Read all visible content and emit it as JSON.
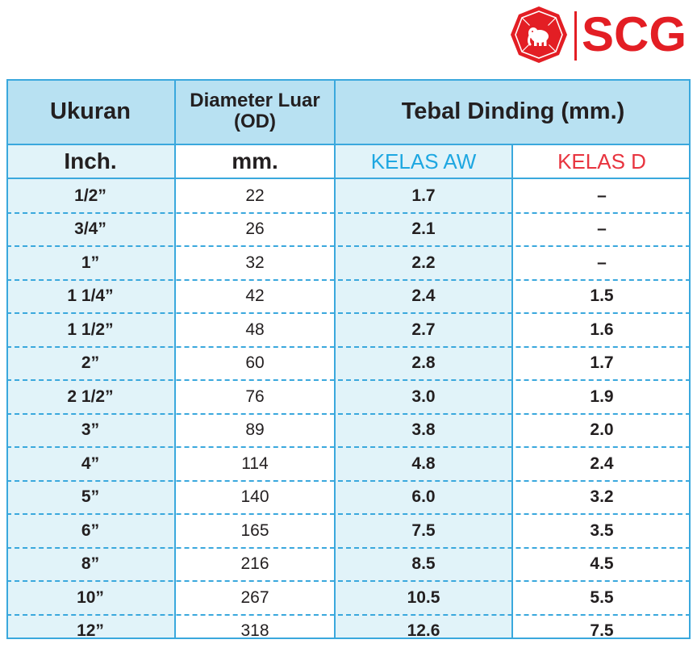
{
  "brand": {
    "name": "SCG",
    "color": "#e31e24"
  },
  "table": {
    "header": {
      "col1": "Ukuran",
      "col2_line1": "Diameter Luar",
      "col2_line2": "(OD)",
      "col3": "Tebal Dinding (mm.)"
    },
    "subheader": {
      "col1": "Inch.",
      "col2": "mm.",
      "col3": "KELAS AW",
      "col4": "KELAS D"
    },
    "colors": {
      "border": "#3aa8dd",
      "header_bg": "#b8e1f2",
      "shaded_col_bg": "#e1f3f9",
      "kelas_aw": "#1ea7e1",
      "kelas_d": "#e8343f"
    },
    "rows": [
      {
        "inch": "1/2”",
        "mm": "22",
        "aw": "1.7",
        "d": "–"
      },
      {
        "inch": "3/4”",
        "mm": "26",
        "aw": "2.1",
        "d": "–"
      },
      {
        "inch": "1”",
        "mm": "32",
        "aw": "2.2",
        "d": "–"
      },
      {
        "inch": "1 1/4”",
        "mm": "42",
        "aw": "2.4",
        "d": "1.5"
      },
      {
        "inch": "1 1/2”",
        "mm": "48",
        "aw": "2.7",
        "d": "1.6"
      },
      {
        "inch": "2”",
        "mm": "60",
        "aw": "2.8",
        "d": "1.7"
      },
      {
        "inch": "2 1/2”",
        "mm": "76",
        "aw": "3.0",
        "d": "1.9"
      },
      {
        "inch": "3”",
        "mm": "89",
        "aw": "3.8",
        "d": "2.0"
      },
      {
        "inch": "4”",
        "mm": "114",
        "aw": "4.8",
        "d": "2.4"
      },
      {
        "inch": "5”",
        "mm": "140",
        "aw": "6.0",
        "d": "3.2"
      },
      {
        "inch": "6”",
        "mm": "165",
        "aw": "7.5",
        "d": "3.5"
      },
      {
        "inch": "8”",
        "mm": "216",
        "aw": "8.5",
        "d": "4.5"
      },
      {
        "inch": "10”",
        "mm": "267",
        "aw": "10.5",
        "d": "5.5"
      },
      {
        "inch": "12”",
        "mm": "318",
        "aw": "12.6",
        "d": "7.5"
      }
    ]
  }
}
